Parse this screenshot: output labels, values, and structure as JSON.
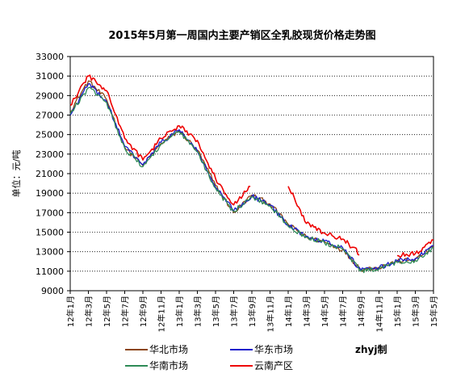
{
  "chart_data": {
    "type": "line",
    "title": "2015年5月第一周国内主要产销区全乳胶现货价格走势图",
    "ylabel": "单位：元/吨",
    "xlabel": "",
    "ylim": [
      9000,
      33000
    ],
    "yticks": [
      9000,
      11000,
      13000,
      15000,
      17000,
      19000,
      21000,
      23000,
      25000,
      27000,
      29000,
      31000,
      33000
    ],
    "categories": [
      "12年1月",
      "12年3月",
      "12年5月",
      "12年7月",
      "12年9月",
      "12年11月",
      "13年1月",
      "13年3月",
      "13年5月",
      "13年7月",
      "13年9月",
      "13年11月",
      "14年1月",
      "14年3月",
      "14年5月",
      "14年7月",
      "14年9月",
      "14年11月",
      "15年1月",
      "15年3月",
      "15年5月"
    ],
    "grid": true,
    "legend_position": "bottom",
    "watermark": "zhyj制",
    "series": [
      {
        "name": "华北市场",
        "color": "#8B4513",
        "values": [
          27400,
          30500,
          28600,
          23700,
          21800,
          24100,
          25400,
          23400,
          19800,
          17000,
          18800,
          17900,
          15800,
          14500,
          14000,
          13200,
          11200,
          11400,
          12000,
          12200,
          13500
        ]
      },
      {
        "name": "华东市场",
        "color": "#1A1ACC",
        "values": [
          27000,
          30200,
          28400,
          23800,
          21900,
          24200,
          25500,
          23300,
          19600,
          17200,
          18700,
          17800,
          15700,
          14600,
          14100,
          13400,
          11100,
          11300,
          12100,
          12300,
          13600
        ]
      },
      {
        "name": "华南市场",
        "color": "#2E8B57",
        "values": [
          27100,
          29800,
          28300,
          23600,
          21700,
          24000,
          25300,
          23200,
          19500,
          17100,
          18600,
          17700,
          15600,
          14500,
          13900,
          13300,
          11000,
          11200,
          11900,
          12100,
          13400
        ]
      },
      {
        "name": "云南产区",
        "color": "#EE0000",
        "values": [
          28000,
          31000,
          29500,
          24600,
          22400,
          24600,
          25900,
          24400,
          20500,
          17800,
          20000,
          null,
          19700,
          15900,
          14900,
          14300,
          12700,
          null,
          12600,
          12800,
          14200
        ]
      }
    ]
  }
}
